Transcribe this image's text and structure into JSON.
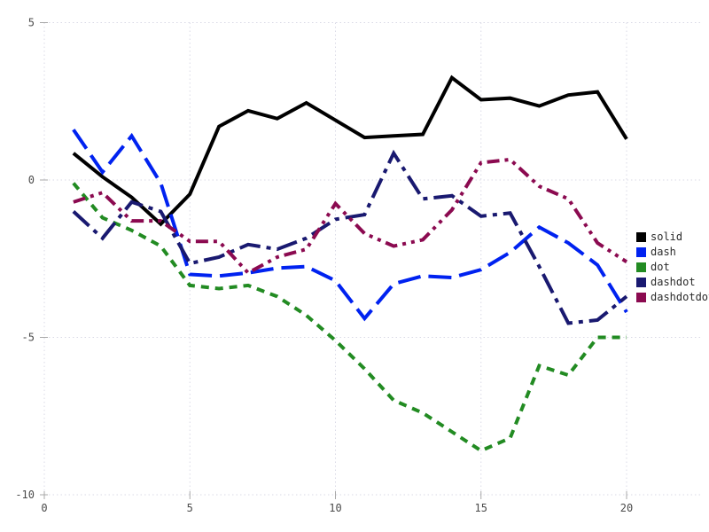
{
  "chart_data": {
    "type": "line",
    "title": "",
    "xlabel": "",
    "ylabel": "",
    "x": [
      1,
      2,
      3,
      4,
      5,
      6,
      7,
      8,
      9,
      10,
      11,
      12,
      13,
      14,
      15,
      16,
      17,
      18,
      19,
      20
    ],
    "series": [
      {
        "name": "solid",
        "color": "#000000",
        "linestyle": "solid",
        "values": [
          0.85,
          0.1,
          -0.55,
          -1.4,
          -0.45,
          1.7,
          2.2,
          1.95,
          2.45,
          1.9,
          1.35,
          1.4,
          1.45,
          3.25,
          2.55,
          2.6,
          2.35,
          2.7,
          2.8,
          1.3
        ]
      },
      {
        "name": "dash",
        "color": "#0022f0",
        "linestyle": "dash",
        "values": [
          1.6,
          0.25,
          1.4,
          -0.1,
          -3.0,
          -3.05,
          -2.95,
          -2.8,
          -2.75,
          -3.2,
          -4.4,
          -3.3,
          -3.05,
          -3.1,
          -2.85,
          -2.3,
          -1.5,
          -2.0,
          -2.7,
          -4.2
        ]
      },
      {
        "name": "dot",
        "color": "#228b22",
        "linestyle": "dot",
        "values": [
          -0.1,
          -1.2,
          -1.6,
          -2.1,
          -3.35,
          -3.45,
          -3.35,
          -3.7,
          -4.3,
          -5.1,
          -6.0,
          -7.0,
          -7.4,
          -8.0,
          -8.6,
          -8.2,
          -5.9,
          -6.2,
          -5.0,
          -5.0
        ]
      },
      {
        "name": "dashdot",
        "color": "#191970",
        "linestyle": "dashdot",
        "values": [
          -1.0,
          -1.85,
          -0.7,
          -1.0,
          -2.65,
          -2.45,
          -2.05,
          -2.2,
          -1.85,
          -1.25,
          -1.1,
          0.85,
          -0.6,
          -0.5,
          -1.15,
          -1.05,
          -2.75,
          -4.55,
          -4.45,
          -3.7
        ]
      },
      {
        "name": "dashdotdot",
        "color": "#8b0a50",
        "linestyle": "dashdotdot",
        "values": [
          -0.7,
          -0.4,
          -1.3,
          -1.3,
          -1.95,
          -1.95,
          -2.95,
          -2.45,
          -2.2,
          -0.75,
          -1.7,
          -2.1,
          -1.9,
          -0.95,
          0.55,
          0.65,
          -0.2,
          -0.6,
          -2.0,
          -2.6
        ]
      }
    ],
    "xlim": [
      0,
      20
    ],
    "ylim": [
      -10,
      5
    ],
    "xticks": [
      0,
      5,
      10,
      15,
      20
    ],
    "yticks": [
      5,
      0,
      -5,
      -10
    ],
    "grid": true,
    "grid_style": "dotted",
    "grid_color": "#d9d9e6",
    "tick_color": "#a8a8a8",
    "legend_position": "right"
  }
}
